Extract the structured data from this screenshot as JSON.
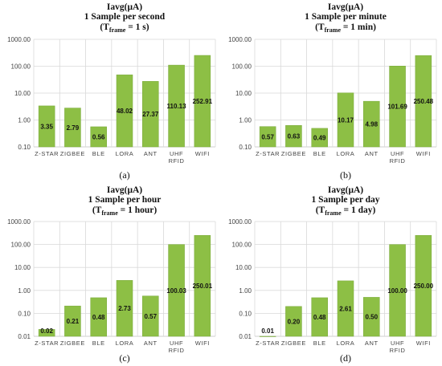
{
  "chart_data": [
    {
      "type": "bar",
      "panel_label": "(a)",
      "title_lines": [
        "Iavg(μA)",
        "1 Sample per second"
      ],
      "title_t": {
        "lead": "(T",
        "sub": "frame",
        "tail": " = 1 s)"
      },
      "categories": [
        "Z-STAR",
        "ZIGBEE",
        "BLE",
        "LORA",
        "ANT",
        "UHF RFID",
        "WIFI"
      ],
      "values": [
        3.35,
        2.79,
        0.56,
        48.02,
        27.37,
        110.13,
        252.91
      ],
      "value_labels": [
        "3.35",
        "2.79",
        "0.56",
        "48.02",
        "27.37",
        "110.13",
        "252.91"
      ],
      "ytick_labels": [
        "1000.00",
        "100.00",
        "10.00",
        "1.00",
        "0.10"
      ],
      "ylim": [
        0.1,
        1000
      ],
      "yscale": "log",
      "grid": true
    },
    {
      "type": "bar",
      "panel_label": "(b)",
      "title_lines": [
        "Iavg(μA)",
        "1 Sample per minute"
      ],
      "title_t": {
        "lead": "(T",
        "sub": "frame",
        "tail": " = 1 min)"
      },
      "categories": [
        "Z-STAR",
        "ZIGBEE",
        "BLE",
        "LORA",
        "ANT",
        "UHF RFID",
        "WIFI"
      ],
      "values": [
        0.57,
        0.63,
        0.49,
        10.17,
        4.98,
        101.69,
        250.48
      ],
      "value_labels": [
        "0.57",
        "0.63",
        "0.49",
        "10.17",
        "4.98",
        "101.69",
        "250.48"
      ],
      "ytick_labels": [
        "1000.00",
        "100.00",
        "10.00",
        "1.00",
        "0.10"
      ],
      "ylim": [
        0.1,
        1000
      ],
      "yscale": "log",
      "grid": true
    },
    {
      "type": "bar",
      "panel_label": "(c)",
      "title_lines": [
        "Iavg(μA)",
        "1 Sample per hour"
      ],
      "title_t": {
        "lead": "(T",
        "sub": "frame",
        "tail": " = 1 hour)"
      },
      "categories": [
        "Z-STAR",
        "ZIGBEE",
        "BLE",
        "LORA",
        "ANT",
        "UHF RFID",
        "WIFI"
      ],
      "values": [
        0.02,
        0.21,
        0.48,
        2.73,
        0.57,
        100.03,
        250.01
      ],
      "value_labels": [
        "0.02",
        "0.21",
        "0.48",
        "2.73",
        "0.57",
        "100.03",
        "250.01"
      ],
      "ytick_labels": [
        "1000.00",
        "100.00",
        "10.00",
        "1.00",
        "0.10",
        "0.01"
      ],
      "ylim": [
        0.01,
        1000
      ],
      "yscale": "log",
      "grid": true
    },
    {
      "type": "bar",
      "panel_label": "(d)",
      "title_lines": [
        "Iavg(μA)",
        "1 Sample per day"
      ],
      "title_t": {
        "lead": "(T",
        "sub": "frame",
        "tail": " = 1 day)"
      },
      "categories": [
        "Z-STAR",
        "ZIGBEE",
        "BLE",
        "LORA",
        "ANT",
        "UHF RFID",
        "WIFI"
      ],
      "values": [
        0.01,
        0.2,
        0.48,
        2.61,
        0.5,
        100.0,
        250.0
      ],
      "value_labels": [
        "0.01",
        "0.20",
        "0.48",
        "2.61",
        "0.50",
        "100.00",
        "250.00"
      ],
      "ytick_labels": [
        "1000.00",
        "100.00",
        "10.00",
        "1.00",
        "0.10",
        "0.01"
      ],
      "ylim": [
        0.01,
        1000
      ],
      "yscale": "log",
      "grid": true
    }
  ],
  "colors": {
    "bar": "#8dbf45",
    "grid": "#d9d9d9"
  }
}
